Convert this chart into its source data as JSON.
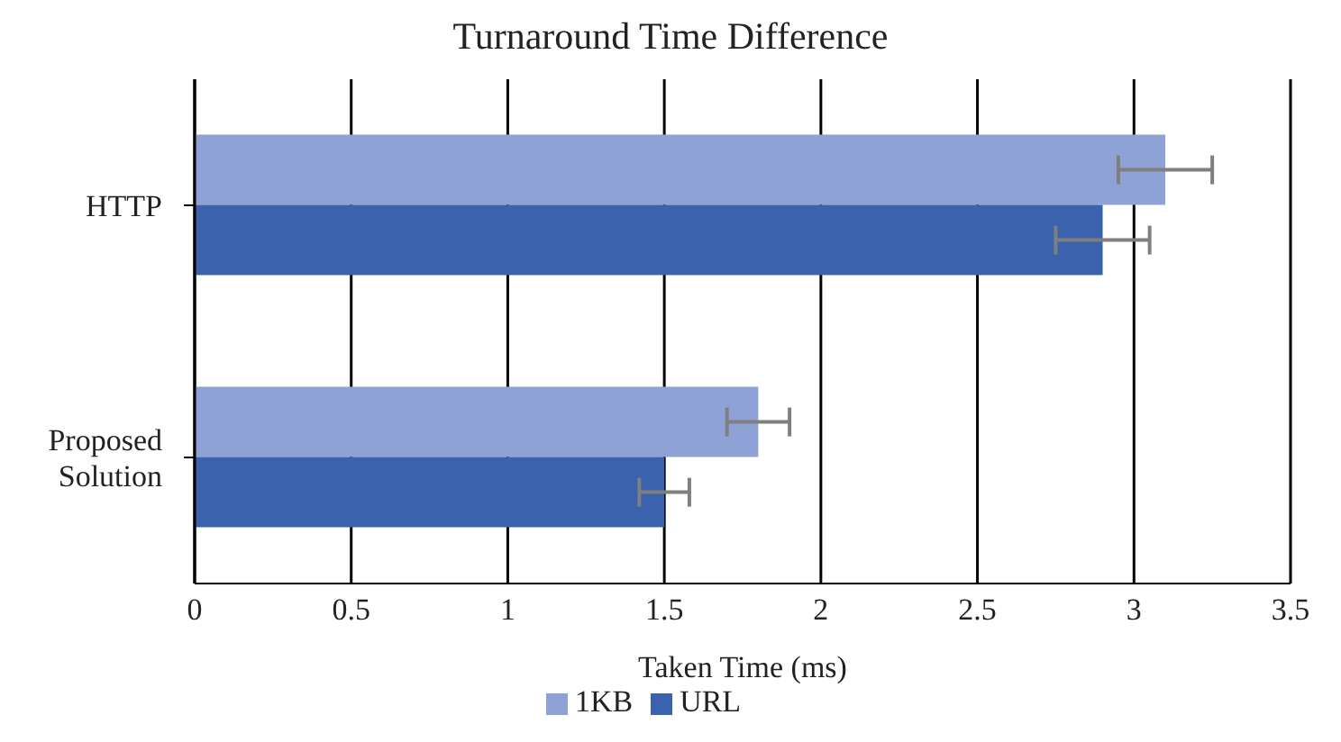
{
  "chart_data": {
    "type": "bar",
    "orientation": "horizontal",
    "title": "Turnaround Time Difference",
    "xlabel": "Taken Time (ms)",
    "categories": [
      "HTTP",
      "Proposed Solution"
    ],
    "series": [
      {
        "name": "1KB",
        "color": "#8ea2d6",
        "values": [
          3.1,
          1.8
        ],
        "errors": [
          0.15,
          0.1
        ]
      },
      {
        "name": "URL",
        "color": "#3a62ad",
        "values": [
          2.9,
          1.5
        ],
        "errors": [
          0.15,
          0.08
        ]
      }
    ],
    "xlim": [
      0,
      3.5
    ],
    "xticks": [
      0,
      0.5,
      1,
      1.5,
      2,
      2.5,
      3,
      3.5
    ],
    "grid": "x",
    "legend": "bottom"
  }
}
